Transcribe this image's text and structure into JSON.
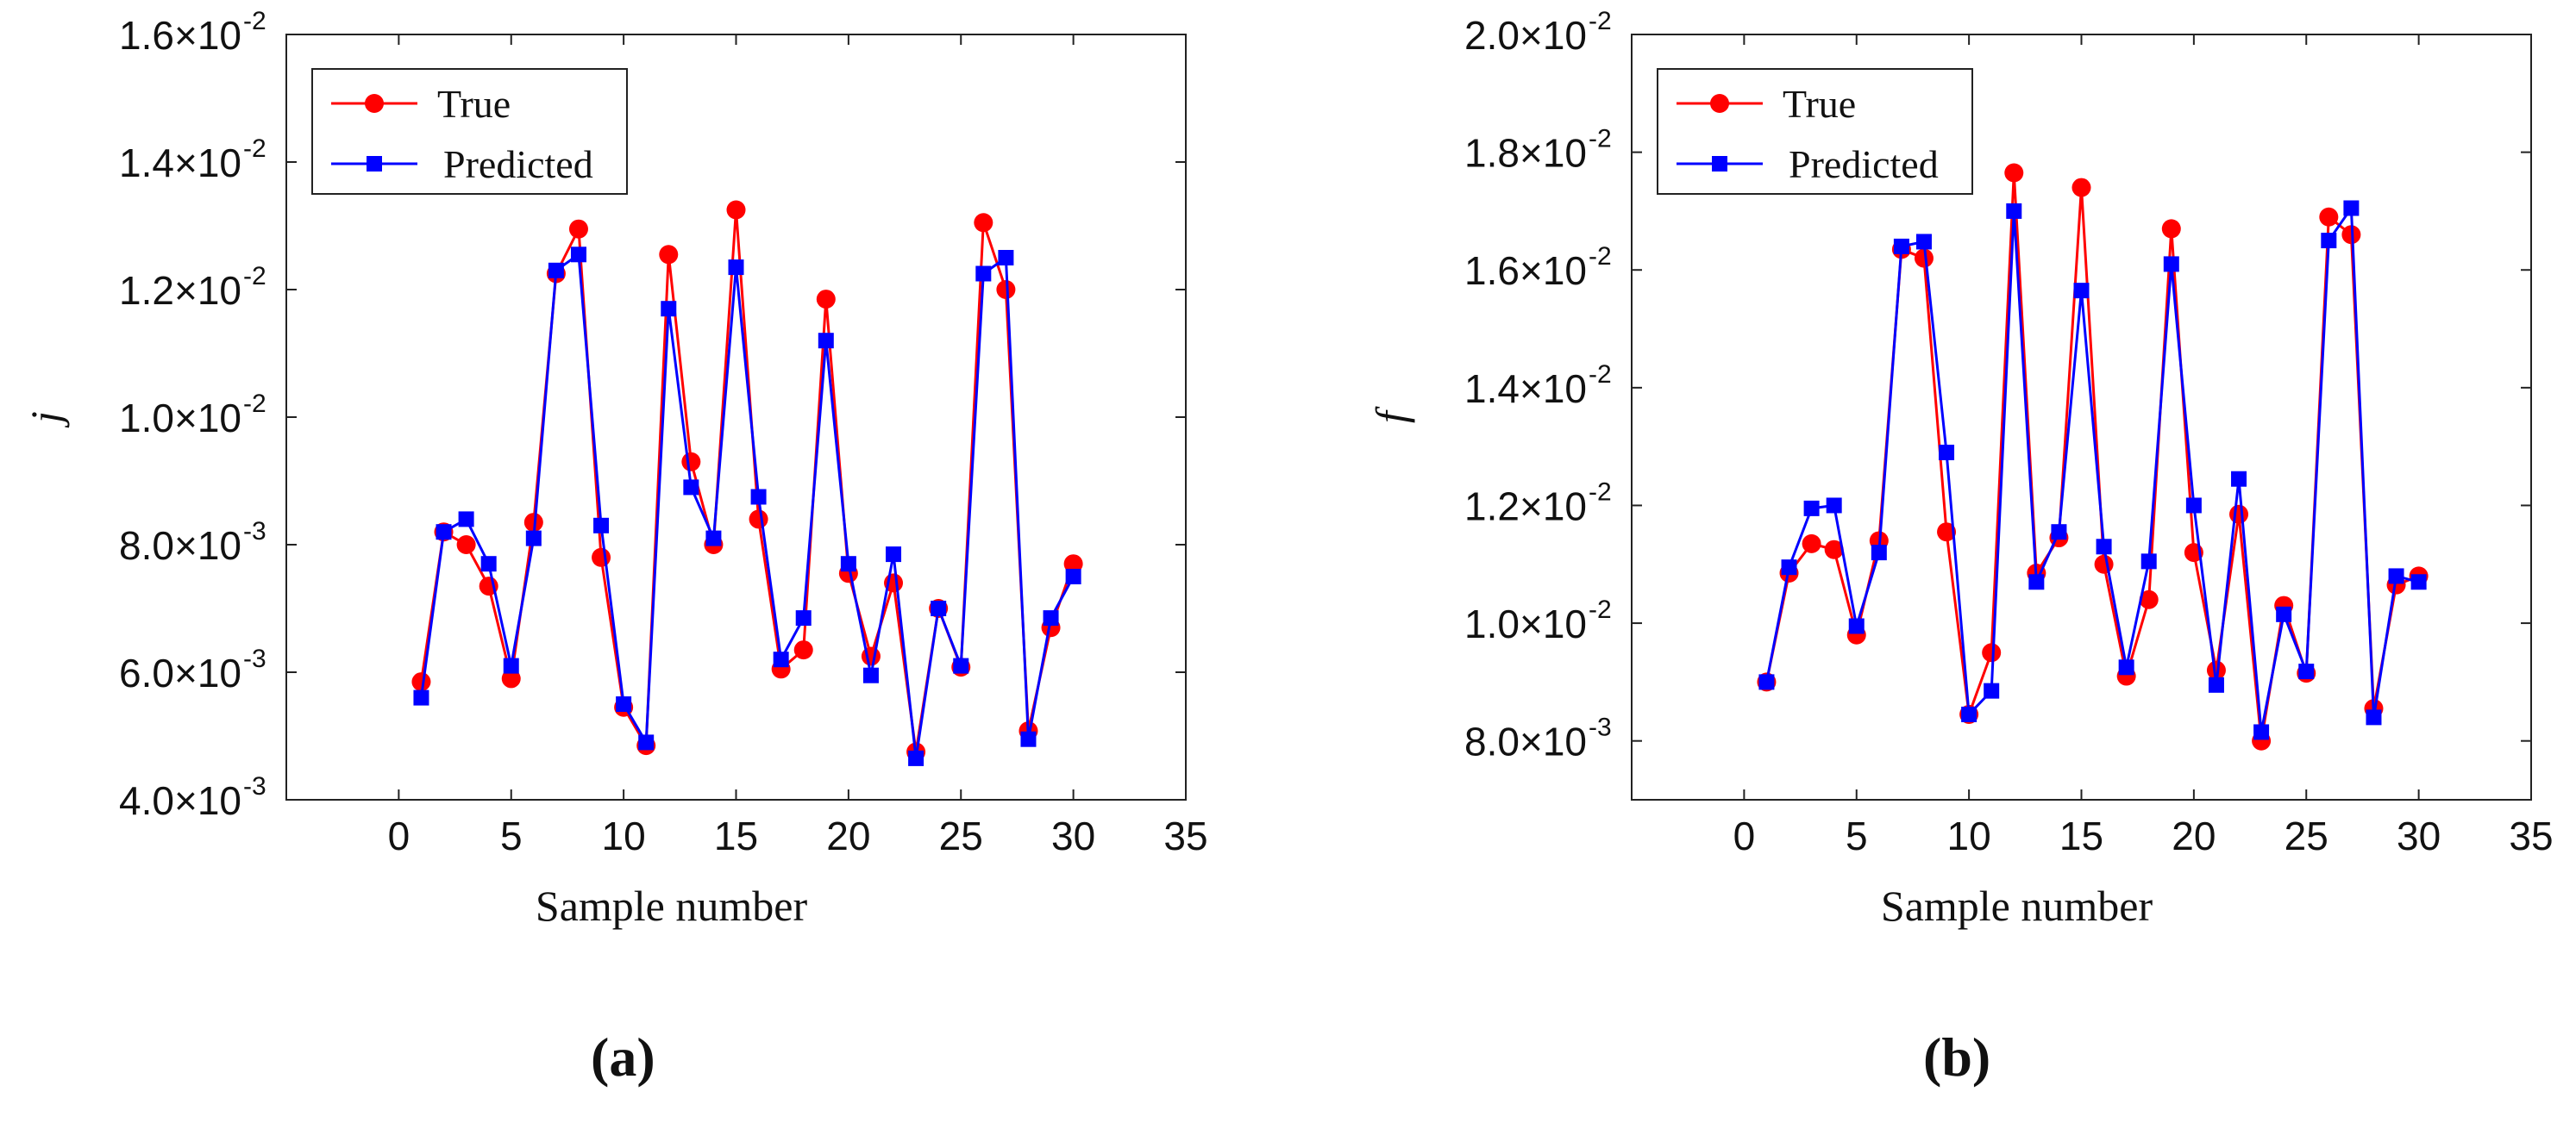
{
  "chart_data": [
    {
      "type": "line",
      "panel_label": "(a)",
      "xlabel": "Sample number",
      "ylabel": "j",
      "xlim": [
        -5,
        35
      ],
      "ylim": [
        0.004,
        0.016
      ],
      "xticks": [
        {
          "value": 0,
          "label": "0"
        },
        {
          "value": 5,
          "label": "5"
        },
        {
          "value": 10,
          "label": "10"
        },
        {
          "value": 15,
          "label": "15"
        },
        {
          "value": 20,
          "label": "20"
        },
        {
          "value": 25,
          "label": "25"
        },
        {
          "value": 30,
          "label": "30"
        },
        {
          "value": 35,
          "label": "35"
        }
      ],
      "yticks": [
        {
          "value": 0.004,
          "mantissa": "4.0×10",
          "exponent": "-3"
        },
        {
          "value": 0.006,
          "mantissa": "6.0×10",
          "exponent": "-3"
        },
        {
          "value": 0.008,
          "mantissa": "8.0×10",
          "exponent": "-3"
        },
        {
          "value": 0.01,
          "mantissa": "1.0×10",
          "exponent": "-2"
        },
        {
          "value": 0.012,
          "mantissa": "1.2×10",
          "exponent": "-2"
        },
        {
          "value": 0.014,
          "mantissa": "1.4×10",
          "exponent": "-2"
        },
        {
          "value": 0.016,
          "mantissa": "1.6×10",
          "exponent": "-2"
        }
      ],
      "legend_position": "top-left",
      "series": [
        {
          "name": "True",
          "color": "#ff0000",
          "marker": "circle",
          "x": [
            1,
            2,
            3,
            4,
            5,
            6,
            7,
            8,
            9,
            10,
            11,
            12,
            13,
            14,
            15,
            16,
            17,
            18,
            19,
            20,
            21,
            22,
            23,
            24,
            25,
            26,
            27,
            28,
            29,
            30
          ],
          "y": [
            0.00585,
            0.0082,
            0.008,
            0.00735,
            0.0059,
            0.00835,
            0.01225,
            0.01295,
            0.0078,
            0.00545,
            0.00485,
            0.01255,
            0.0093,
            0.008,
            0.01325,
            0.0084,
            0.00605,
            0.00635,
            0.01185,
            0.00755,
            0.00625,
            0.0074,
            0.00475,
            0.007,
            0.00608,
            0.01305,
            0.012,
            0.00508,
            0.0067,
            0.0077
          ]
        },
        {
          "name": "Predicted",
          "color": "#0000ff",
          "marker": "square",
          "x": [
            1,
            2,
            3,
            4,
            5,
            6,
            7,
            8,
            9,
            10,
            11,
            12,
            13,
            14,
            15,
            16,
            17,
            18,
            19,
            20,
            21,
            22,
            23,
            24,
            25,
            26,
            27,
            28,
            29,
            30
          ],
          "y": [
            0.0056,
            0.0082,
            0.0084,
            0.0077,
            0.0061,
            0.0081,
            0.0123,
            0.01255,
            0.0083,
            0.0055,
            0.0049,
            0.0117,
            0.0089,
            0.0081,
            0.01235,
            0.00875,
            0.0062,
            0.00685,
            0.0112,
            0.0077,
            0.00595,
            0.00785,
            0.00465,
            0.007,
            0.0061,
            0.01225,
            0.0125,
            0.00495,
            0.00685,
            0.0075
          ]
        }
      ]
    },
    {
      "type": "line",
      "panel_label": "(b)",
      "xlabel": "Sample number",
      "ylabel": "f",
      "xlim": [
        -5,
        35
      ],
      "ylim": [
        0.007,
        0.02
      ],
      "xticks": [
        {
          "value": 0,
          "label": "0"
        },
        {
          "value": 5,
          "label": "5"
        },
        {
          "value": 10,
          "label": "10"
        },
        {
          "value": 15,
          "label": "15"
        },
        {
          "value": 20,
          "label": "20"
        },
        {
          "value": 25,
          "label": "25"
        },
        {
          "value": 30,
          "label": "30"
        },
        {
          "value": 35,
          "label": "35"
        }
      ],
      "yticks": [
        {
          "value": 0.008,
          "mantissa": "8.0×10",
          "exponent": "-3"
        },
        {
          "value": 0.01,
          "mantissa": "1.0×10",
          "exponent": "-2"
        },
        {
          "value": 0.012,
          "mantissa": "1.2×10",
          "exponent": "-2"
        },
        {
          "value": 0.014,
          "mantissa": "1.4×10",
          "exponent": "-2"
        },
        {
          "value": 0.016,
          "mantissa": "1.6×10",
          "exponent": "-2"
        },
        {
          "value": 0.018,
          "mantissa": "1.8×10",
          "exponent": "-2"
        },
        {
          "value": 0.02,
          "mantissa": "2.0×10",
          "exponent": "-2"
        }
      ],
      "legend_position": "top-left",
      "series": [
        {
          "name": "True",
          "color": "#ff0000",
          "marker": "circle",
          "x": [
            1,
            2,
            3,
            4,
            5,
            6,
            7,
            8,
            9,
            10,
            11,
            12,
            13,
            14,
            15,
            16,
            17,
            18,
            19,
            20,
            21,
            22,
            23,
            24,
            25,
            26,
            27,
            28,
            29,
            30
          ],
          "y": [
            0.009,
            0.01085,
            0.01135,
            0.01125,
            0.0098,
            0.0114,
            0.01635,
            0.0162,
            0.01155,
            0.00845,
            0.0095,
            0.01765,
            0.01085,
            0.01145,
            0.0174,
            0.011,
            0.0091,
            0.0104,
            0.0167,
            0.0112,
            0.0092,
            0.01185,
            0.008,
            0.0103,
            0.00915,
            0.0169,
            0.0166,
            0.00855,
            0.01065,
            0.0108
          ]
        },
        {
          "name": "Predicted",
          "color": "#0000ff",
          "marker": "square",
          "x": [
            1,
            2,
            3,
            4,
            5,
            6,
            7,
            8,
            9,
            10,
            11,
            12,
            13,
            14,
            15,
            16,
            17,
            18,
            19,
            20,
            21,
            22,
            23,
            24,
            25,
            26,
            27,
            28,
            29,
            30
          ],
          "y": [
            0.009,
            0.01095,
            0.01195,
            0.012,
            0.00995,
            0.0112,
            0.0164,
            0.01648,
            0.0129,
            0.00845,
            0.00885,
            0.017,
            0.0107,
            0.01155,
            0.01565,
            0.0113,
            0.00925,
            0.01105,
            0.0161,
            0.012,
            0.00895,
            0.01245,
            0.00815,
            0.01015,
            0.00918,
            0.0165,
            0.01705,
            0.0084,
            0.0108,
            0.0107
          ]
        }
      ]
    }
  ]
}
